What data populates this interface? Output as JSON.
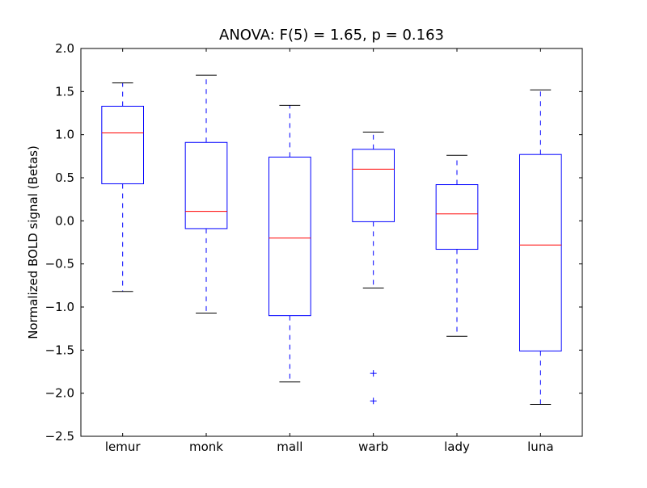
{
  "chart_data": {
    "type": "boxplot",
    "title": "ANOVA: F(5) = 1.65, p = 0.163",
    "xlabel": "",
    "ylabel": "Normalized BOLD signal (Betas)",
    "ylim": [
      -2.5,
      2.0
    ],
    "yticks": [
      "2.0",
      "1.5",
      "1.0",
      "0.5",
      "0.0",
      "−0.5",
      "−1.0",
      "−1.5",
      "−2.0",
      "−2.5"
    ],
    "ytick_values": [
      2.0,
      1.5,
      1.0,
      0.5,
      0.0,
      -0.5,
      -1.0,
      -1.5,
      -2.0,
      -2.5
    ],
    "grid": false,
    "categories": [
      "lemur",
      "monk",
      "mall",
      "warb",
      "lady",
      "luna"
    ],
    "boxes": [
      {
        "name": "lemur",
        "whisker_low": -0.82,
        "q1": 0.43,
        "median": 1.02,
        "q3": 1.33,
        "whisker_high": 1.6,
        "fliers": []
      },
      {
        "name": "monk",
        "whisker_low": -1.07,
        "q1": -0.09,
        "median": 0.11,
        "q3": 0.91,
        "whisker_high": 1.69,
        "fliers": []
      },
      {
        "name": "mall",
        "whisker_low": -1.87,
        "q1": -1.1,
        "median": -0.2,
        "q3": 0.74,
        "whisker_high": 1.34,
        "fliers": []
      },
      {
        "name": "warb",
        "whisker_low": -0.78,
        "q1": -0.01,
        "median": 0.6,
        "q3": 0.83,
        "whisker_high": 1.03,
        "fliers": [
          -1.77,
          -2.09
        ]
      },
      {
        "name": "lady",
        "whisker_low": -1.34,
        "q1": -0.33,
        "median": 0.08,
        "q3": 0.42,
        "whisker_high": 0.76,
        "fliers": []
      },
      {
        "name": "luna",
        "whisker_low": -2.13,
        "q1": -1.51,
        "median": -0.28,
        "q3": 0.77,
        "whisker_high": 1.52,
        "fliers": []
      }
    ],
    "colors": {
      "box": "#0000ff",
      "median": "#ff0000",
      "whisker": "#0000ff",
      "cap": "#000000",
      "flier": "#0000ff"
    }
  }
}
